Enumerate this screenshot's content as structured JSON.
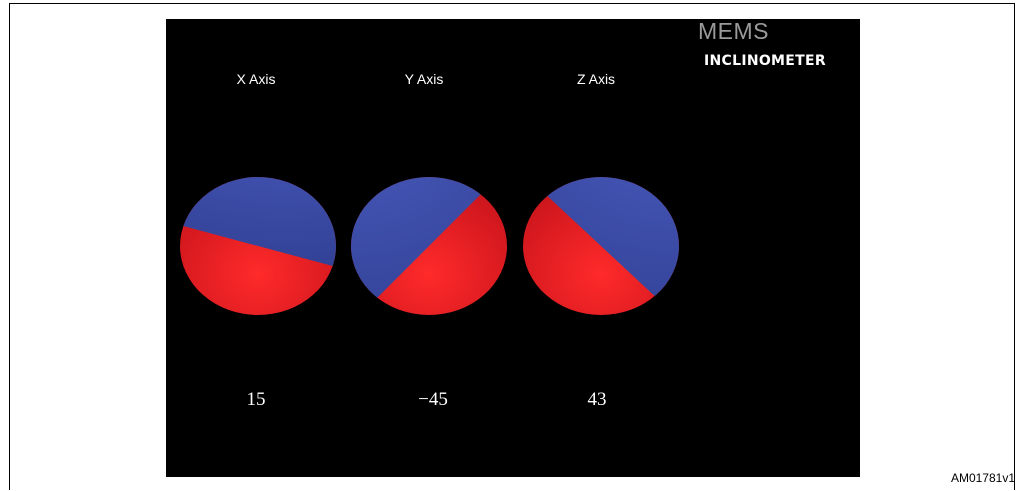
{
  "brand": {
    "line1": "MEMS",
    "line2": "INCLINOMETER"
  },
  "axes": [
    {
      "label": "X Axis",
      "value": "15",
      "angle_deg": 15
    },
    {
      "label": "Y Axis",
      "value": "−45",
      "angle_deg": -45
    },
    {
      "label": "Z Axis",
      "value": "43",
      "angle_deg": 43
    }
  ],
  "colors": {
    "upper_half": "#3a4ba6",
    "lower_half": "#e8202a",
    "background": "#000000"
  },
  "figure_id": "AM01781v1"
}
